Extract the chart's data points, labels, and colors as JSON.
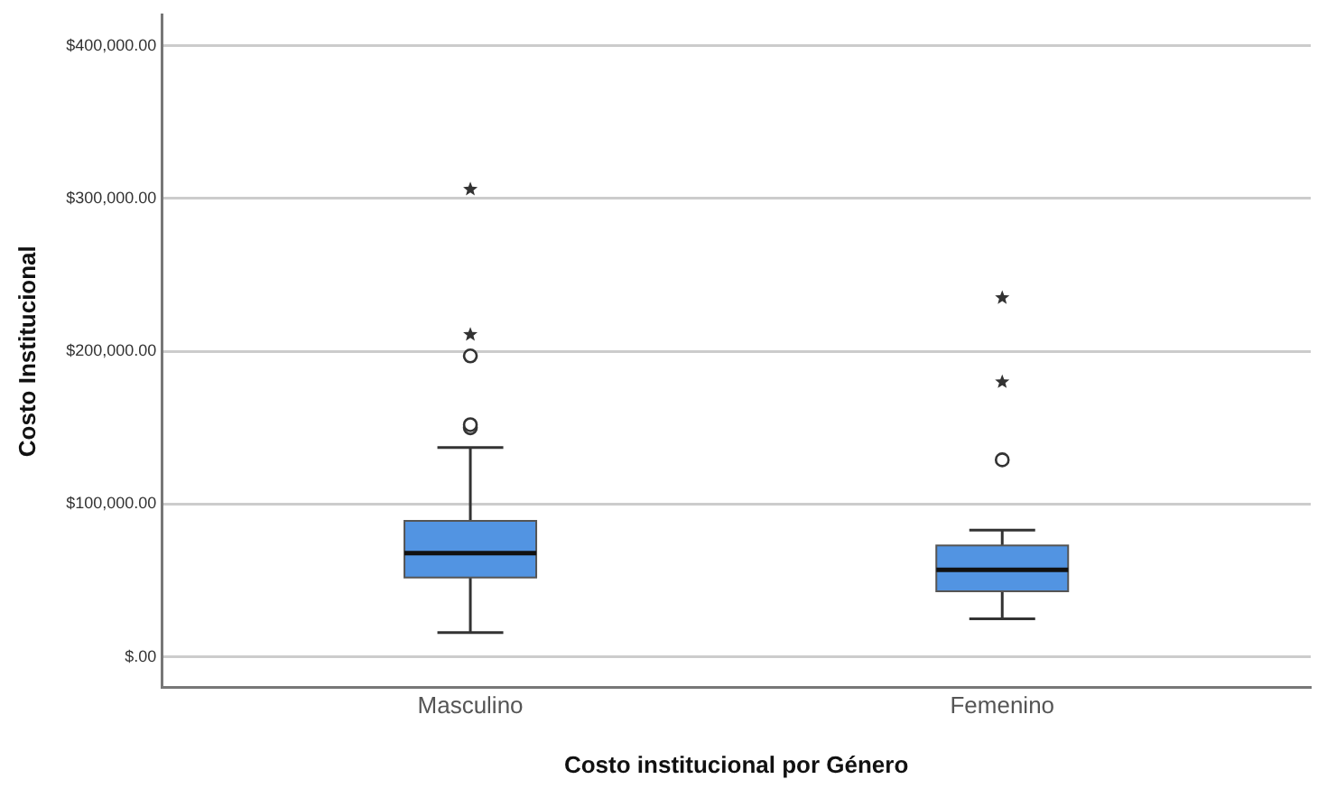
{
  "chart_data": {
    "type": "box",
    "xlabel": "Costo institucional por Género",
    "ylabel": "Costo Institucional",
    "categories": [
      "Masculino",
      "Femenino"
    ],
    "color": "#5294e2",
    "boxes": [
      {
        "low": 16000,
        "q1": 52000,
        "median": 68000,
        "q3": 89000,
        "high": 137000,
        "outliers": [
          150000,
          152000,
          197000
        ]
      },
      {
        "low": 25000,
        "q1": 43000,
        "median": 57000,
        "q3": 73000,
        "high": 83000,
        "outliers": [
          129000
        ]
      }
    ],
    "series": [
      {
        "type": "scatter",
        "marker": "star",
        "color": "#333333",
        "x": [
          "Masculino",
          "Masculino",
          "Femenino",
          "Femenino"
        ],
        "values": [
          306000,
          211000,
          235000,
          180000
        ]
      }
    ],
    "ylim": [
      -20000,
      420000
    ],
    "yticks": [
      {
        "value": 0,
        "label": "$.00"
      },
      {
        "value": 100000,
        "label": "$100,000.00"
      },
      {
        "value": 200000,
        "label": "$200,000.00"
      },
      {
        "value": 300000,
        "label": "$300,000.00"
      },
      {
        "value": 400000,
        "label": "$400,000.00"
      }
    ],
    "grid": "y",
    "legend": false,
    "marker": "circle"
  }
}
